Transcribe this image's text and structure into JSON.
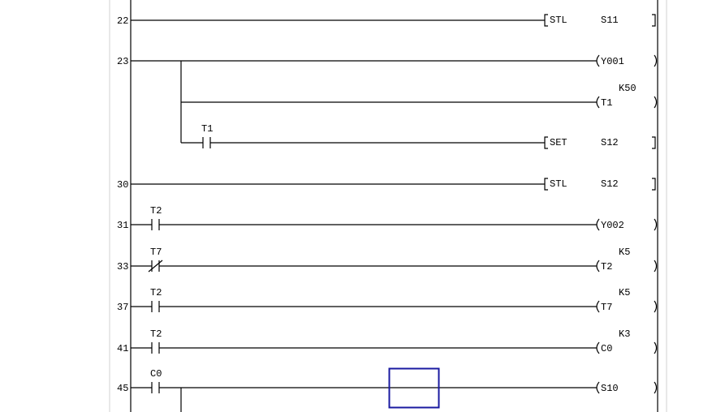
{
  "cursor_color": "#1a1aa0",
  "rungs": [
    {
      "step": "22",
      "contacts": [],
      "output": {
        "kind": "instruction",
        "op": "STL",
        "operand": "S11"
      }
    },
    {
      "step": "23",
      "contacts": [],
      "output": {
        "kind": "coil",
        "device": "Y001"
      },
      "branches": [
        {
          "contacts": [],
          "output": {
            "kind": "coil",
            "device": "T1",
            "constant": "K50"
          }
        },
        {
          "contacts": [
            {
              "device": "T1",
              "type": "NO"
            }
          ],
          "output": {
            "kind": "instruction",
            "op": "SET",
            "operand": "S12"
          }
        }
      ]
    },
    {
      "step": "30",
      "contacts": [],
      "output": {
        "kind": "instruction",
        "op": "STL",
        "operand": "S12"
      }
    },
    {
      "step": "31",
      "contacts": [
        {
          "device": "T2",
          "type": "NO"
        }
      ],
      "output": {
        "kind": "coil",
        "device": "Y002"
      }
    },
    {
      "step": "33",
      "contacts": [
        {
          "device": "T7",
          "type": "NC"
        }
      ],
      "output": {
        "kind": "coil",
        "device": "T2",
        "constant": "K5"
      }
    },
    {
      "step": "37",
      "contacts": [
        {
          "device": "T2",
          "type": "NO"
        }
      ],
      "output": {
        "kind": "coil",
        "device": "T7",
        "constant": "K5"
      }
    },
    {
      "step": "41",
      "contacts": [
        {
          "device": "T2",
          "type": "NO"
        }
      ],
      "output": {
        "kind": "coil",
        "device": "C0",
        "constant": "K3"
      }
    },
    {
      "step": "45",
      "contacts": [
        {
          "device": "C0",
          "type": "NO"
        }
      ],
      "output": {
        "kind": "coil",
        "device": "S10"
      },
      "has_branch_below": true
    }
  ]
}
